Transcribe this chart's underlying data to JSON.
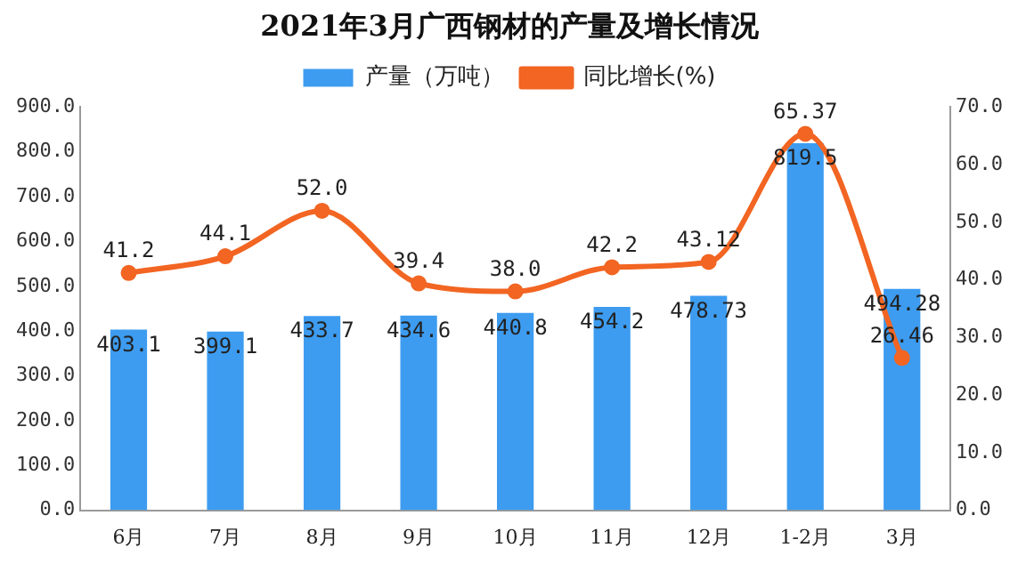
{
  "chart_data": {
    "type": "bar",
    "title": "2021年3月广西钢材的产量及增长情况",
    "categories": [
      "6月",
      "7月",
      "8月",
      "9月",
      "10月",
      "11月",
      "12月",
      "1-2月",
      "3月"
    ],
    "series": [
      {
        "name": "产量（万吨）",
        "color": "#3d9cf0",
        "values": [
          403.1,
          399.1,
          433.7,
          434.6,
          440.8,
          454.2,
          478.73,
          819.5,
          494.28
        ],
        "value_labels": [
          "403.1",
          "399.1",
          "433.7",
          "434.6",
          "440.8",
          "454.2",
          "478.73",
          "819.5",
          "494.28"
        ]
      },
      {
        "name": "同比增长(%)",
        "type": "line",
        "axis": "y2",
        "color": "#f26522",
        "values": [
          41.2,
          44.1,
          52.0,
          39.4,
          38.0,
          42.2,
          43.12,
          65.37,
          26.46
        ],
        "value_labels": [
          "41.2",
          "44.1",
          "52.0",
          "39.4",
          "38.0",
          "42.2",
          "43.12",
          "65.37",
          "26.46"
        ]
      }
    ],
    "ylim": [
      0,
      900
    ],
    "yticks": [
      {
        "value": 0,
        "label": "0.0"
      },
      {
        "value": 100,
        "label": "100.0"
      },
      {
        "value": 200,
        "label": "200.0"
      },
      {
        "value": 300,
        "label": "300.0"
      },
      {
        "value": 400,
        "label": "400.0"
      },
      {
        "value": 500,
        "label": "500.0"
      },
      {
        "value": 600,
        "label": "600.0"
      },
      {
        "value": 700,
        "label": "700.0"
      },
      {
        "value": 800,
        "label": "800.0"
      },
      {
        "value": 900,
        "label": "900.0"
      }
    ],
    "y2lim": [
      0,
      70
    ],
    "y2ticks": [
      {
        "value": 0,
        "label": "0.0"
      },
      {
        "value": 10,
        "label": "10.0"
      },
      {
        "value": 20,
        "label": "20.0"
      },
      {
        "value": 30,
        "label": "30.0"
      },
      {
        "value": 40,
        "label": "40.0"
      },
      {
        "value": 50,
        "label": "50.0"
      },
      {
        "value": 60,
        "label": "60.0"
      },
      {
        "value": 70,
        "label": "70.0"
      }
    ],
    "legend": "top",
    "grid": false,
    "marker": "circle"
  }
}
